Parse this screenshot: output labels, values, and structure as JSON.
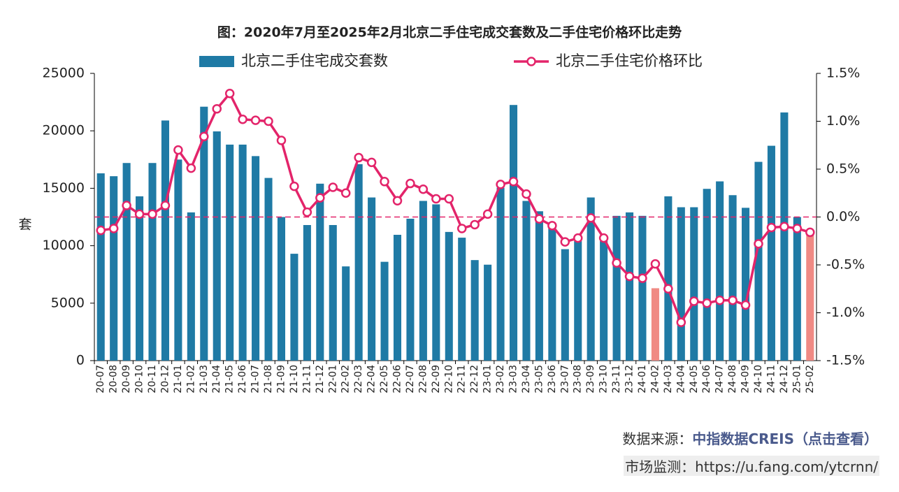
{
  "chart_data": {
    "type": "bar_line",
    "title": "图：2020年7月至2025年2月北京二手住宅成交套数及二手住宅价格环比走势",
    "y_label": "套",
    "categories": [
      "20-07",
      "20-08",
      "20-09",
      "20-10",
      "20-11",
      "20-12",
      "21-01",
      "21-02",
      "21-03",
      "21-04",
      "21-05",
      "21-06",
      "21-07",
      "21-08",
      "21-09",
      "21-10",
      "21-11",
      "21-12",
      "22-01",
      "22-02",
      "22-03",
      "22-04",
      "22-05",
      "22-06",
      "22-07",
      "22-08",
      "22-09",
      "22-10",
      "22-11",
      "22-12",
      "23-01",
      "23-02",
      "23-03",
      "23-04",
      "23-05",
      "23-06",
      "23-07",
      "23-08",
      "23-09",
      "23-10",
      "23-11",
      "23-12",
      "24-01",
      "24-02",
      "24-03",
      "24-04",
      "24-05",
      "24-06",
      "24-07",
      "24-08",
      "24-09",
      "24-10",
      "24-11",
      "24-12",
      "25-01",
      "25-02"
    ],
    "series": [
      {
        "name": "北京二手住宅成交套数",
        "type": "bar",
        "color": "#1f7aa5",
        "point_colors": [
          "#1f7aa5",
          "#1f7aa5",
          "#1f7aa5",
          "#1f7aa5",
          "#1f7aa5",
          "#1f7aa5",
          "#1f7aa5",
          "#1f7aa5",
          "#1f7aa5",
          "#1f7aa5",
          "#1f7aa5",
          "#1f7aa5",
          "#1f7aa5",
          "#1f7aa5",
          "#1f7aa5",
          "#1f7aa5",
          "#1f7aa5",
          "#1f7aa5",
          "#1f7aa5",
          "#1f7aa5",
          "#1f7aa5",
          "#1f7aa5",
          "#1f7aa5",
          "#1f7aa5",
          "#1f7aa5",
          "#1f7aa5",
          "#1f7aa5",
          "#1f7aa5",
          "#1f7aa5",
          "#1f7aa5",
          "#1f7aa5",
          "#1f7aa5",
          "#1f7aa5",
          "#1f7aa5",
          "#1f7aa5",
          "#1f7aa5",
          "#1f7aa5",
          "#1f7aa5",
          "#1f7aa5",
          "#1f7aa5",
          "#1f7aa5",
          "#1f7aa5",
          "#1f7aa5",
          "#f08a84",
          "#1f7aa5",
          "#1f7aa5",
          "#1f7aa5",
          "#1f7aa5",
          "#1f7aa5",
          "#1f7aa5",
          "#1f7aa5",
          "#1f7aa5",
          "#1f7aa5",
          "#1f7aa5",
          "#1f7aa5",
          "#f08a84"
        ],
        "values": [
          16300,
          16050,
          17200,
          14300,
          17200,
          20900,
          17500,
          12900,
          22100,
          19950,
          18800,
          18800,
          17800,
          15900,
          12500,
          9300,
          11800,
          15400,
          11800,
          8200,
          17100,
          14200,
          8600,
          10950,
          12350,
          13900,
          13600,
          11200,
          10700,
          8750,
          8350,
          15050,
          22250,
          13900,
          13000,
          11900,
          9700,
          10400,
          14200,
          10400,
          12600,
          12900,
          12600,
          6300,
          14300,
          13350,
          13350,
          14950,
          15600,
          14400,
          13300,
          17300,
          18700,
          21600,
          12500,
          11000
        ]
      },
      {
        "name": "北京二手住宅价格环比",
        "type": "line",
        "axis": "y2",
        "color": "#e3246a",
        "values": [
          -0.14,
          -0.12,
          0.12,
          0.03,
          0.03,
          0.12,
          0.7,
          0.51,
          0.84,
          1.13,
          1.29,
          1.02,
          1.01,
          1.0,
          0.8,
          0.32,
          0.05,
          0.2,
          0.31,
          0.25,
          0.62,
          0.57,
          0.37,
          0.17,
          0.35,
          0.29,
          0.19,
          0.19,
          -0.12,
          -0.08,
          0.03,
          0.34,
          0.37,
          0.24,
          -0.02,
          -0.09,
          -0.26,
          -0.22,
          -0.01,
          -0.22,
          -0.48,
          -0.62,
          -0.64,
          -0.49,
          -0.75,
          -1.1,
          -0.88,
          -0.9,
          -0.87,
          -0.87,
          -0.92,
          -0.28,
          -0.11,
          -0.1,
          -0.12,
          -0.16
        ]
      }
    ],
    "ylim": [
      0,
      25000
    ],
    "yticks": [
      0,
      5000,
      10000,
      15000,
      20000,
      25000
    ],
    "y2lim": [
      -1.5,
      1.5
    ],
    "y2ticks": [
      {
        "value": -1.5,
        "label": "-1.5%"
      },
      {
        "value": -1.0,
        "label": "-1.0%"
      },
      {
        "value": -0.5,
        "label": "-0.5%"
      },
      {
        "value": 0,
        "label": "0.0%"
      },
      {
        "value": 0.5,
        "label": "0.5%"
      },
      {
        "value": 1.0,
        "label": "1.0%"
      },
      {
        "value": 1.5,
        "label": "1.5%"
      }
    ],
    "y2_reference": {
      "value": 0,
      "color": "#e3246a"
    },
    "grid": false
  },
  "footer": {
    "source_label": "数据来源：",
    "source_link": "中指数据CREIS（点击查看）",
    "monitor": "市场监测：https://u.fang.com/ytcrnn/"
  }
}
